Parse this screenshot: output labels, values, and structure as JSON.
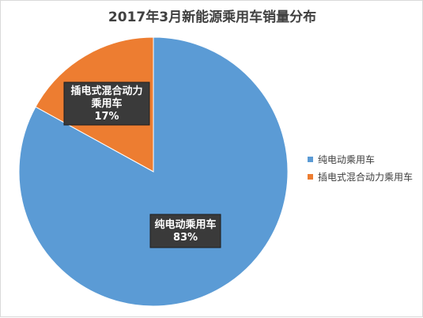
{
  "chart_data": {
    "type": "pie",
    "title": "2017年3月新能源乘用车销量分布",
    "categories": [
      "纯电动乘用车",
      "插电式混合动力乘用车"
    ],
    "values": [
      83,
      17
    ],
    "unit": "%",
    "colors": [
      "#5b9bd5",
      "#ed7d31"
    ],
    "legend_position": "right",
    "data_labels": [
      {
        "name_lines": [
          "纯电动乘用车"
        ],
        "percent": "83%"
      },
      {
        "name_lines": [
          "插电式混合动力",
          "乘用车"
        ],
        "percent": "17%"
      }
    ],
    "legend": [
      "纯电动乘用车",
      "插电式混合动力乘用车"
    ]
  }
}
